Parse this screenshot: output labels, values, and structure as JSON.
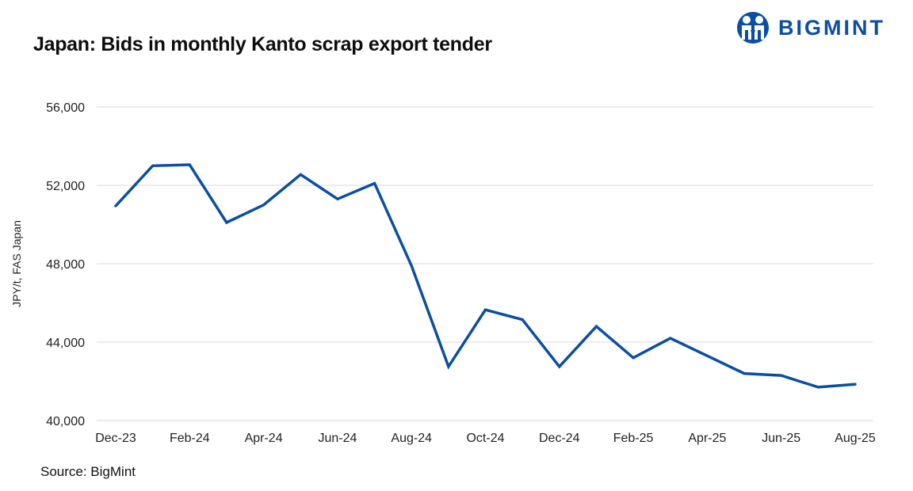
{
  "header": {
    "title": "Japan: Bids in monthly Kanto scrap export tender",
    "logo_text": "BIGMINT",
    "logo_icon": "bigmint-people-icon"
  },
  "footer": {
    "source": "Source: BigMint"
  },
  "colors": {
    "line": "#0b4ea2",
    "grid": "#e6e6e6",
    "logo": "#0b4ea2"
  },
  "chart_data": {
    "type": "line",
    "title": "Japan: Bids in monthly Kanto scrap export tender",
    "xlabel": "",
    "ylabel": "JPY/t, FAS Japan",
    "ylim": [
      40000,
      56000
    ],
    "yticks": [
      40000,
      44000,
      48000,
      52000,
      56000
    ],
    "ytick_labels": [
      "40,000",
      "44,000",
      "48,000",
      "52,000",
      "56,000"
    ],
    "grid": true,
    "legend": null,
    "x": [
      "Dec-23",
      "Jan-24",
      "Feb-24",
      "Mar-24",
      "Apr-24",
      "May-24",
      "Jun-24",
      "Jul-24",
      "Aug-24",
      "Sep-24",
      "Oct-24",
      "Nov-24",
      "Dec-24",
      "Jan-25",
      "Feb-25",
      "Mar-25",
      "Apr-25",
      "May-25",
      "Jun-25",
      "Jul-25",
      "Aug-25"
    ],
    "xtick_labels": [
      "Dec-23",
      "Feb-24",
      "Apr-24",
      "Jun-24",
      "Aug-24",
      "Oct-24",
      "Dec-24",
      "Feb-25",
      "Apr-25",
      "Jun-25",
      "Aug-25"
    ],
    "series": [
      {
        "name": "Kanto scrap export tender bid",
        "values": [
          50950,
          53000,
          53050,
          50100,
          51000,
          52550,
          51300,
          52100,
          47900,
          42750,
          45650,
          45150,
          42750,
          44800,
          43200,
          44200,
          43300,
          42400,
          42300,
          41700,
          41850
        ]
      }
    ]
  }
}
